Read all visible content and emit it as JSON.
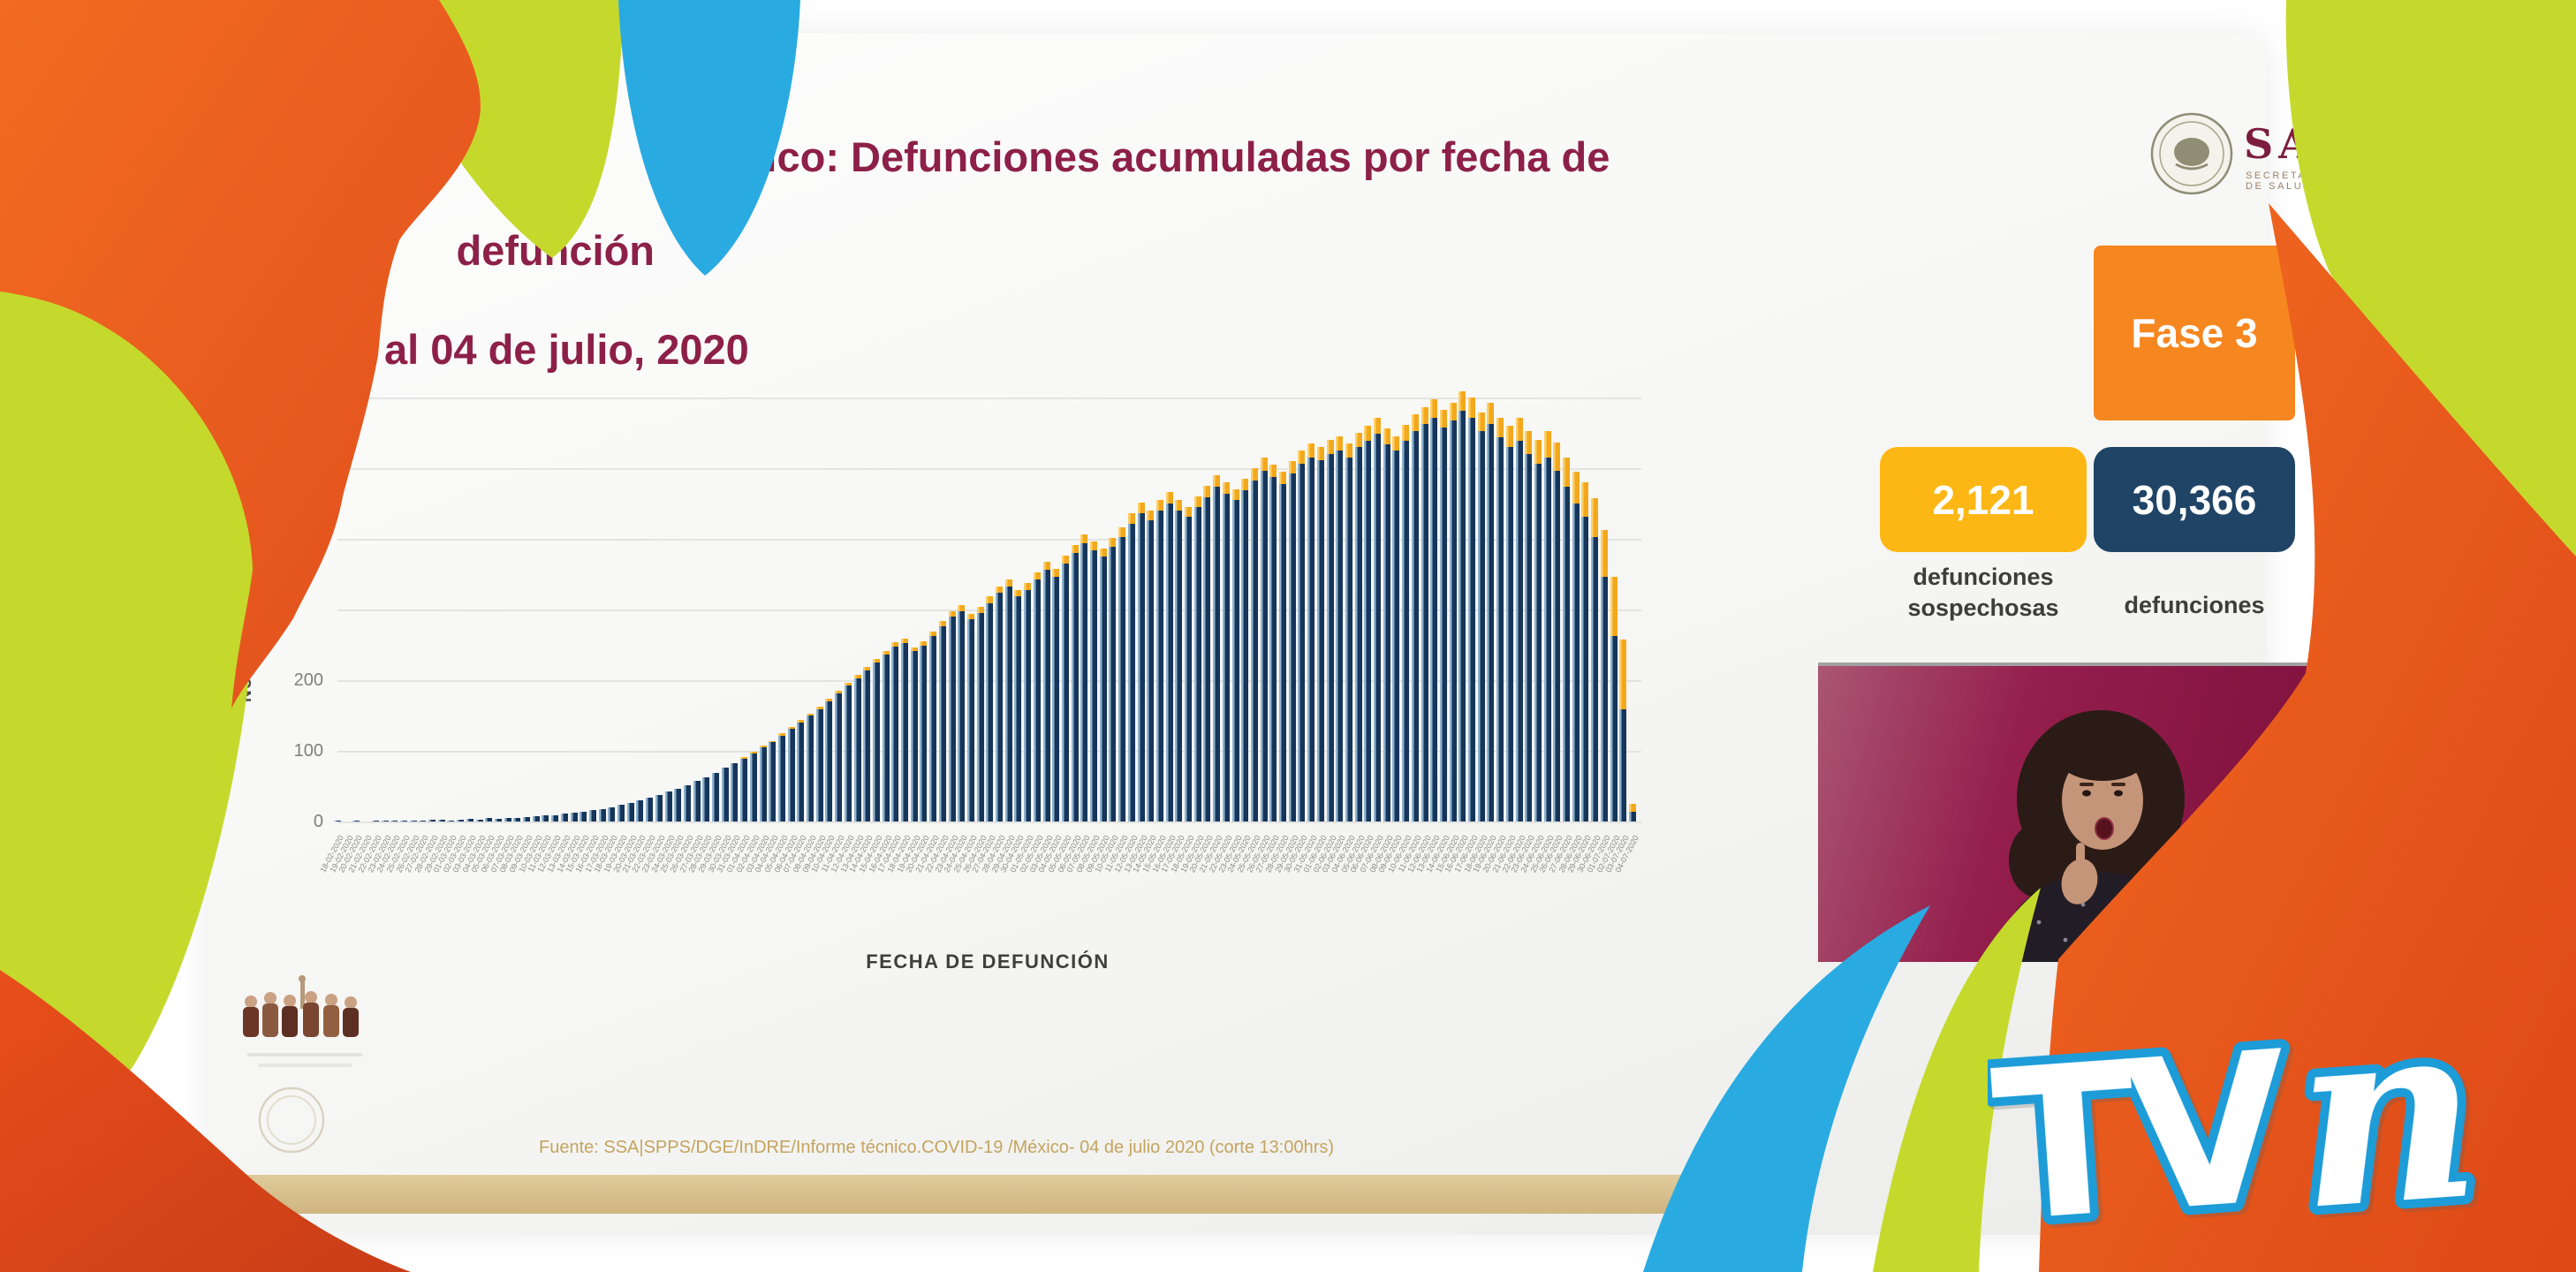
{
  "slide": {
    "title_line1": "México: Defunciones acumuladas por fecha de",
    "title_line2": "defunción",
    "title_line3": "al 04 de julio, 2020",
    "footer_source": "Fuente: SSA|SPPS/DGE/InDRE/Informe técnico.COVID-19 /México- 04 de julio 2020 (corte 13:00hrs)"
  },
  "logo": {
    "name": "SALUD",
    "subtitle": "SECRETARÍA DE SALUD"
  },
  "phase_badge": {
    "label": "Fase 3",
    "color": "#f6861f"
  },
  "stats": {
    "suspected": {
      "value": "2,121",
      "label_line1": "defunciones",
      "label_line2": "sospechosas",
      "color": "#fdb714"
    },
    "deaths": {
      "value": "30,366",
      "label": "defunciones",
      "color": "#1f4466"
    }
  },
  "broadcaster": {
    "logo_text_tv": "TV",
    "logo_text_n": "n",
    "outline_color": "#1d9cd8"
  },
  "colors": {
    "title_maroon": "#8d2048",
    "confirmed_bar": "#16355a",
    "suspected_bar": "#f3a81c",
    "footer_tan": "#c4a45e",
    "deco_orange": "#ef5a22",
    "deco_lime": "#c5d92d",
    "deco_blue": "#29abe2",
    "video_maroon": "#8e1c47"
  },
  "chart_data": {
    "type": "bar",
    "stacked": true,
    "title": "México: Defunciones acumuladas por fecha de defunción, 2020",
    "xlabel": "FECHA DE DEFUNCIÓN",
    "ylabel": "NÚMERO DE DEFUNCIONES",
    "ylim": [
      0,
      700
    ],
    "grid": true,
    "legend_position": "none",
    "ytick_labels": [
      "0",
      "100",
      "200"
    ],
    "ytick_values": [
      0,
      100,
      200
    ],
    "categories": [
      "18-02-2020",
      "19-02-2020",
      "20-02-2020",
      "21-02-2020",
      "22-02-2020",
      "23-02-2020",
      "24-02-2020",
      "25-02-2020",
      "26-02-2020",
      "27-02-2020",
      "28-02-2020",
      "29-02-2020",
      "01-03-2020",
      "02-03-2020",
      "03-03-2020",
      "04-03-2020",
      "05-03-2020",
      "06-03-2020",
      "07-03-2020",
      "08-03-2020",
      "09-03-2020",
      "10-03-2020",
      "11-03-2020",
      "12-03-2020",
      "13-03-2020",
      "14-03-2020",
      "15-03-2020",
      "16-03-2020",
      "17-03-2020",
      "18-03-2020",
      "19-03-2020",
      "20-03-2020",
      "21-03-2020",
      "22-03-2020",
      "23-03-2020",
      "24-03-2020",
      "25-03-2020",
      "26-03-2020",
      "27-03-2020",
      "28-03-2020",
      "29-03-2020",
      "30-03-2020",
      "31-03-2020",
      "01-04-2020",
      "02-04-2020",
      "03-04-2020",
      "04-04-2020",
      "05-04-2020",
      "06-04-2020",
      "07-04-2020",
      "08-04-2020",
      "09-04-2020",
      "10-04-2020",
      "11-04-2020",
      "12-04-2020",
      "13-04-2020",
      "14-04-2020",
      "15-04-2020",
      "16-04-2020",
      "17-04-2020",
      "18-04-2020",
      "19-04-2020",
      "20-04-2020",
      "21-04-2020",
      "22-04-2020",
      "23-04-2020",
      "24-04-2020",
      "25-04-2020",
      "26-04-2020",
      "27-04-2020",
      "28-04-2020",
      "29-04-2020",
      "30-04-2020",
      "01-05-2020",
      "02-05-2020",
      "03-05-2020",
      "04-05-2020",
      "05-05-2020",
      "06-05-2020",
      "07-05-2020",
      "08-05-2020",
      "09-05-2020",
      "10-05-2020",
      "11-05-2020",
      "12-05-2020",
      "13-05-2020",
      "14-05-2020",
      "15-05-2020",
      "16-05-2020",
      "17-05-2020",
      "18-05-2020",
      "19-05-2020",
      "20-05-2020",
      "21-05-2020",
      "22-05-2020",
      "23-05-2020",
      "24-05-2020",
      "25-05-2020",
      "26-05-2020",
      "27-05-2020",
      "28-05-2020",
      "29-05-2020",
      "30-05-2020",
      "31-05-2020",
      "01-06-2020",
      "02-06-2020",
      "03-06-2020",
      "04-06-2020",
      "05-06-2020",
      "06-06-2020",
      "07-06-2020",
      "08-06-2020",
      "09-06-2020",
      "10-06-2020",
      "11-06-2020",
      "12-06-2020",
      "13-06-2020",
      "14-06-2020",
      "15-06-2020",
      "16-06-2020",
      "17-06-2020",
      "18-06-2020",
      "19-06-2020",
      "20-06-2020",
      "21-06-2020",
      "22-06-2020",
      "23-06-2020",
      "24-06-2020",
      "25-06-2020",
      "26-06-2020",
      "27-06-2020",
      "28-06-2020",
      "29-06-2020",
      "30-06-2020",
      "01-07-2020",
      "02-07-2020",
      "03-07-2020",
      "04-07-2020"
    ],
    "series": [
      {
        "name": "defunciones",
        "color": "#16355a",
        "values": [
          1,
          0,
          1,
          0,
          1,
          1,
          2,
          1,
          2,
          2,
          3,
          3,
          2,
          3,
          4,
          3,
          5,
          4,
          6,
          5,
          7,
          8,
          9,
          10,
          12,
          14,
          15,
          17,
          19,
          22,
          25,
          28,
          32,
          36,
          40,
          45,
          50,
          55,
          61,
          67,
          74,
          81,
          88,
          95,
          103,
          112,
          120,
          130,
          140,
          150,
          160,
          170,
          182,
          193,
          205,
          216,
          228,
          240,
          252,
          264,
          270,
          258,
          266,
          280,
          295,
          310,
          318,
          305,
          315,
          330,
          345,
          355,
          340,
          350,
          365,
          380,
          370,
          390,
          405,
          420,
          410,
          400,
          415,
          430,
          450,
          465,
          455,
          470,
          480,
          470,
          460,
          475,
          490,
          505,
          495,
          485,
          500,
          515,
          530,
          520,
          510,
          525,
          540,
          550,
          545,
          555,
          560,
          550,
          565,
          575,
          585,
          570,
          560,
          575,
          590,
          600,
          610,
          595,
          605,
          620,
          610,
          590,
          600,
          580,
          565,
          575,
          555,
          540,
          550,
          530,
          505,
          480,
          460,
          430,
          370,
          280,
          170,
          15
        ]
      },
      {
        "name": "defunciones sospechosas",
        "color": "#f3a81c",
        "values": [
          0,
          0,
          0,
          0,
          0,
          0,
          0,
          0,
          0,
          0,
          0,
          0,
          0,
          0,
          0,
          0,
          0,
          0,
          0,
          0,
          0,
          0,
          0,
          0,
          0,
          0,
          0,
          0,
          0,
          0,
          0,
          0,
          0,
          0,
          0,
          0,
          0,
          0,
          0,
          0,
          0,
          0,
          0,
          2,
          2,
          3,
          2,
          3,
          3,
          4,
          3,
          4,
          4,
          5,
          5,
          6,
          5,
          6,
          6,
          7,
          6,
          5,
          6,
          7,
          8,
          8,
          9,
          8,
          9,
          10,
          10,
          11,
          10,
          10,
          11,
          12,
          11,
          12,
          13,
          14,
          13,
          12,
          13,
          14,
          15,
          16,
          15,
          16,
          17,
          16,
          15,
          16,
          17,
          18,
          17,
          17,
          18,
          19,
          20,
          19,
          18,
          19,
          20,
          21,
          20,
          21,
          22,
          21,
          22,
          23,
          24,
          23,
          22,
          24,
          25,
          26,
          27,
          26,
          27,
          30,
          30,
          28,
          32,
          30,
          32,
          35,
          34,
          36,
          40,
          42,
          45,
          48,
          52,
          58,
          70,
          90,
          105,
          12
        ]
      }
    ]
  }
}
